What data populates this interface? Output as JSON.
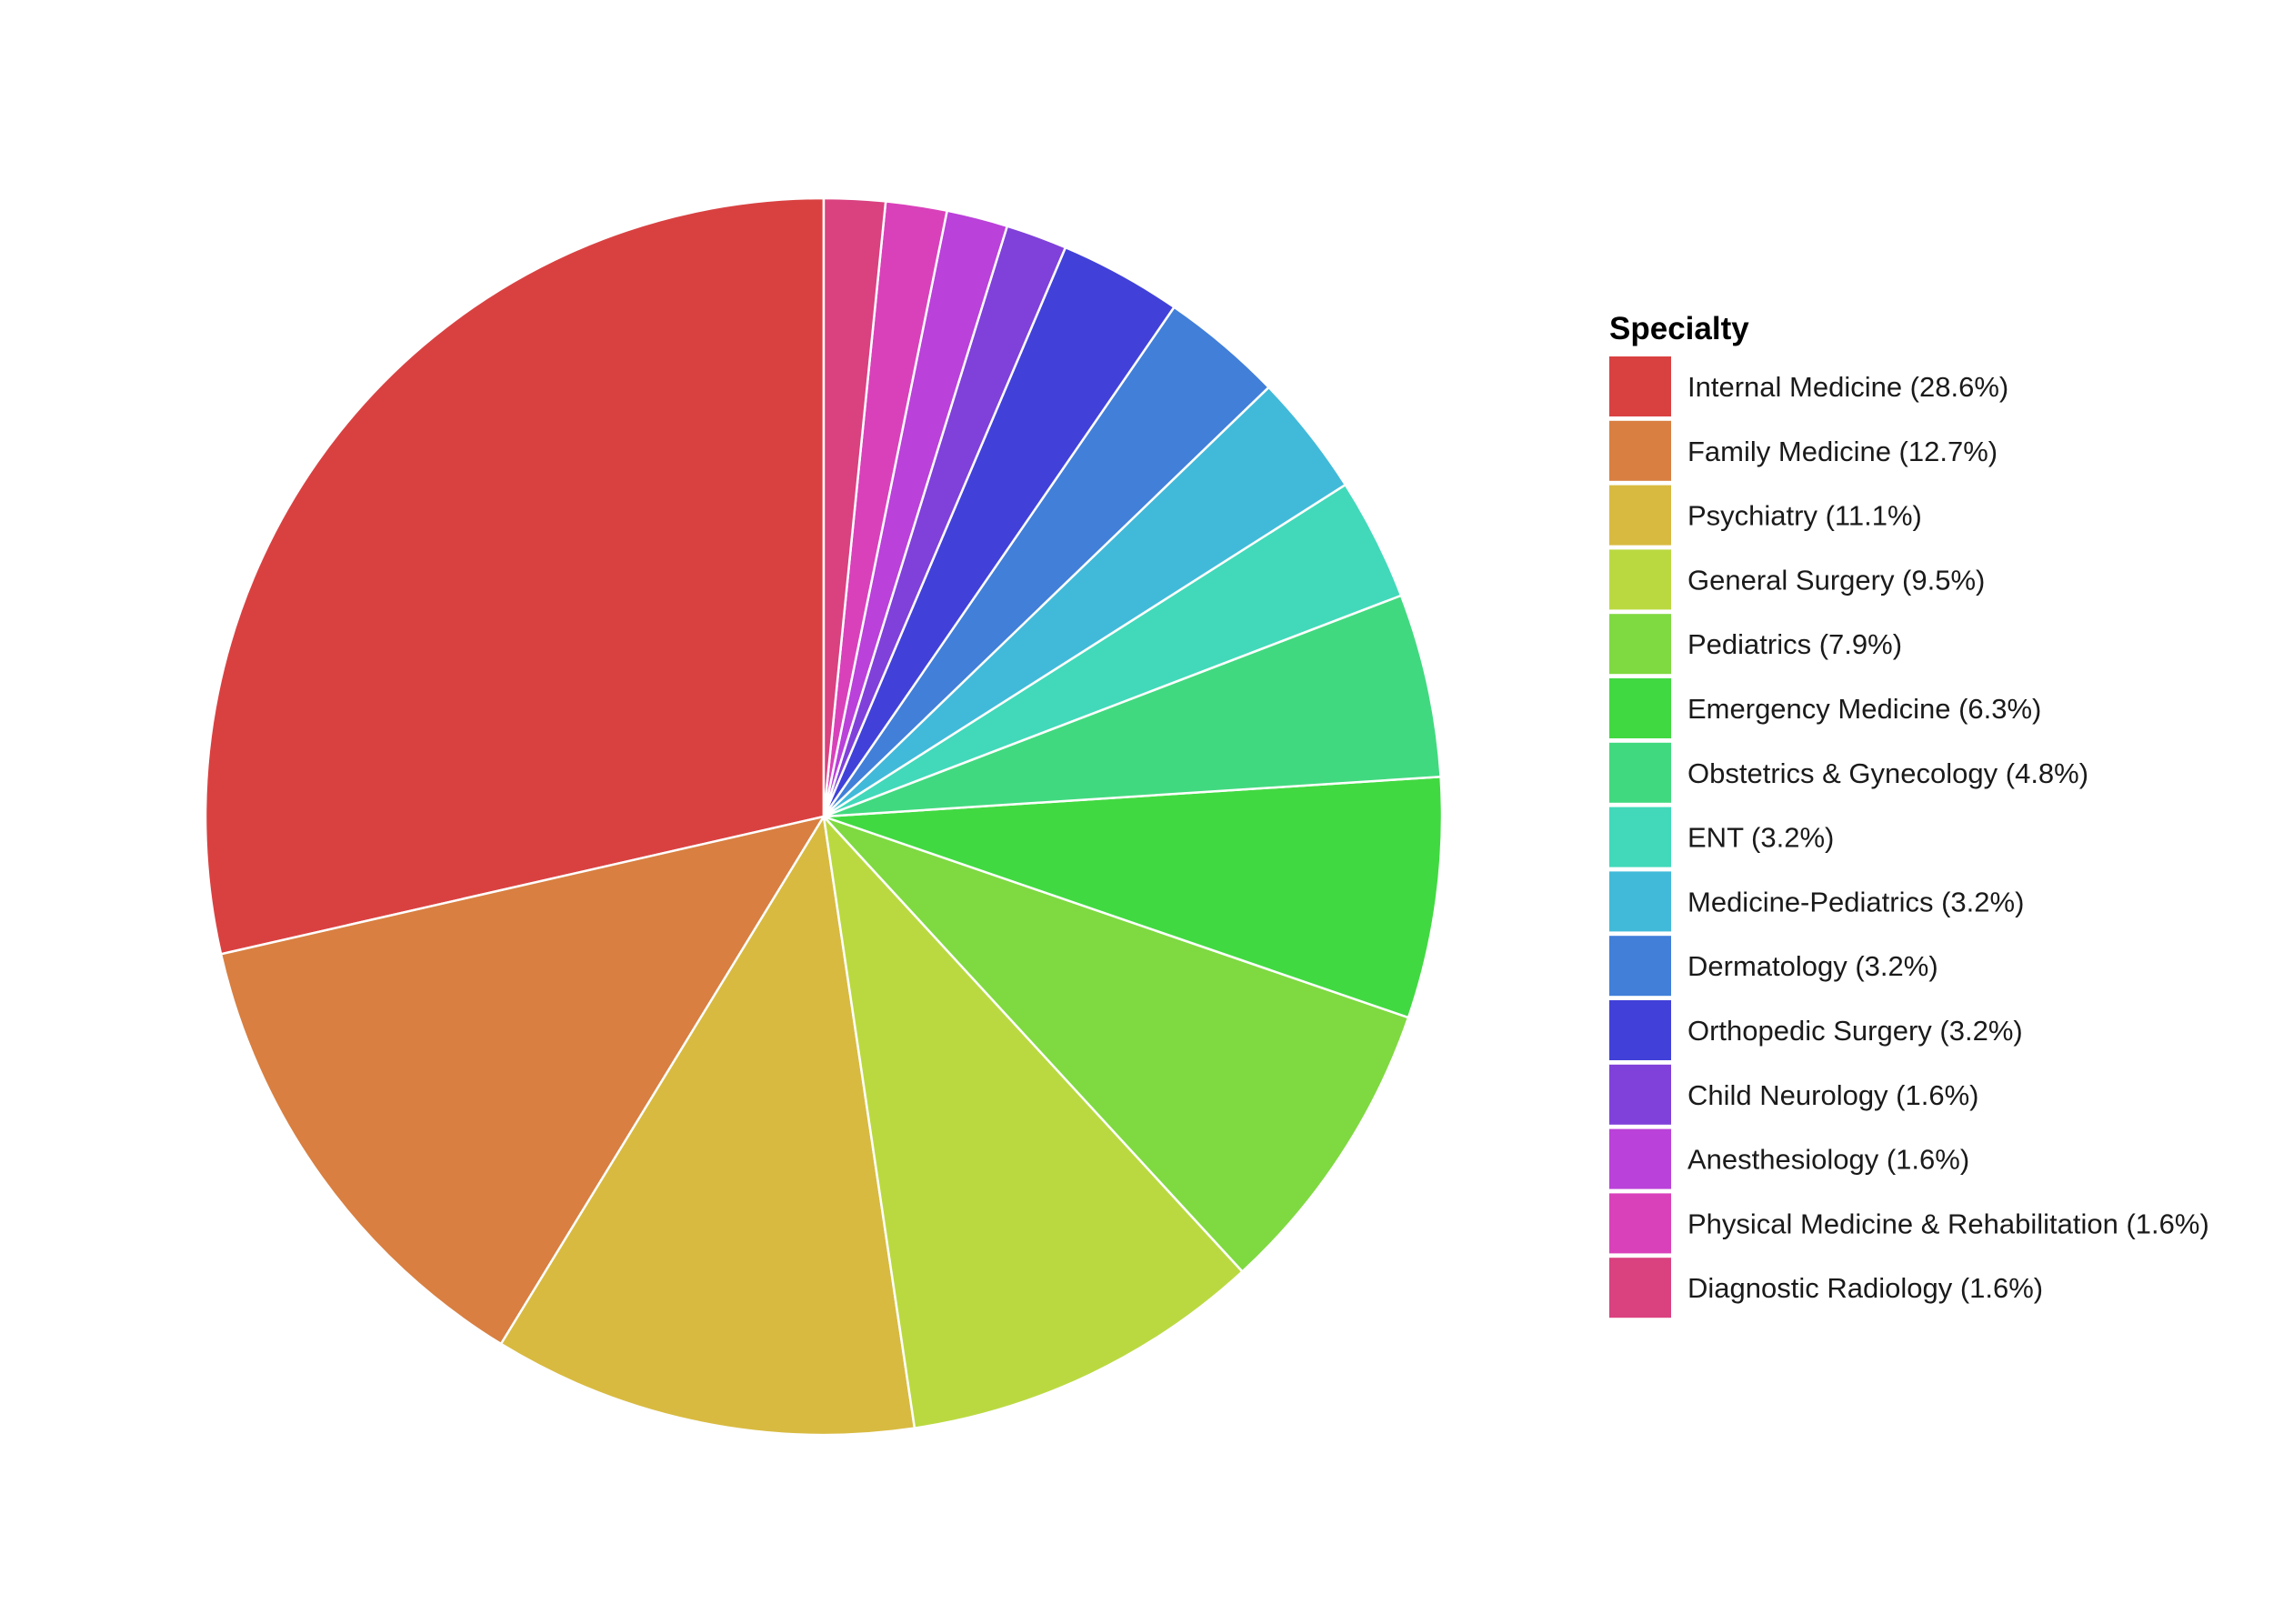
{
  "chart_data": {
    "type": "pie",
    "legend_title": "Specialty",
    "legend_position": "right",
    "start_angle": "12 o'clock",
    "direction": "counterclockwise",
    "slice_border_color": "#ffffff",
    "slices": [
      {
        "label": "Internal Medicine (28.6%)",
        "value": 28.6,
        "color": "#D94141"
      },
      {
        "label": "Family Medicine (12.7%)",
        "value": 12.7,
        "color": "#D87F41"
      },
      {
        "label": "Psychiatry (11.1%)",
        "value": 11.1,
        "color": "#D8BA41"
      },
      {
        "label": "General Surgery (9.5%)",
        "value": 9.5,
        "color": "#BAD941"
      },
      {
        "label": "Pediatrics (7.9%)",
        "value": 7.9,
        "color": "#7FD941"
      },
      {
        "label": "Emergency Medicine (6.3%)",
        "value": 6.3,
        "color": "#41D941"
      },
      {
        "label": "Obstetrics & Gynecology (4.8%)",
        "value": 4.8,
        "color": "#41D97F"
      },
      {
        "label": "ENT (3.2%)",
        "value": 3.2,
        "color": "#41D9BA"
      },
      {
        "label": "Medicine-Pediatrics (3.2%)",
        "value": 3.2,
        "color": "#41BAD9"
      },
      {
        "label": "Dermatology (3.2%)",
        "value": 3.2,
        "color": "#417FD9"
      },
      {
        "label": "Orthopedic Surgery (3.2%)",
        "value": 3.2,
        "color": "#4141D9"
      },
      {
        "label": "Child Neurology (1.6%)",
        "value": 1.6,
        "color": "#7F41D9"
      },
      {
        "label": "Anesthesiology (1.6%)",
        "value": 1.6,
        "color": "#BA41D9"
      },
      {
        "label": "Physical Medicine & Rehabilitation (1.6%)",
        "value": 1.6,
        "color": "#D941BA"
      },
      {
        "label": "Diagnostic Radiology (1.6%)",
        "value": 1.6,
        "color": "#D9417F"
      }
    ]
  }
}
